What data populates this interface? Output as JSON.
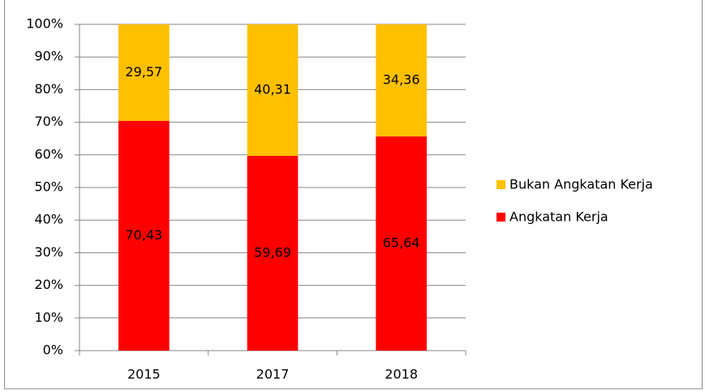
{
  "chart_data": {
    "type": "stacked_bar",
    "categories": [
      "2015",
      "2017",
      "2018"
    ],
    "series": [
      {
        "name": "Angkatan Kerja",
        "color": "#ff0000",
        "values": [
          70.43,
          59.69,
          65.64
        ],
        "value_labels": [
          "70,43",
          "59,69",
          "65,64"
        ]
      },
      {
        "name": "Bukan Angkatan Kerja",
        "color": "#ffc000",
        "values": [
          29.57,
          40.31,
          34.36
        ],
        "value_labels": [
          "29,57",
          "40,31",
          "34,36"
        ]
      }
    ],
    "ylim": [
      0,
      100
    ],
    "yticks": [
      {
        "value": 0,
        "label": "0%"
      },
      {
        "value": 10,
        "label": "10%"
      },
      {
        "value": 20,
        "label": "20%"
      },
      {
        "value": 30,
        "label": "30%"
      },
      {
        "value": 40,
        "label": "40%"
      },
      {
        "value": 50,
        "label": "50%"
      },
      {
        "value": 60,
        "label": "60%"
      },
      {
        "value": 70,
        "label": "70%"
      },
      {
        "value": 80,
        "label": "80%"
      },
      {
        "value": 90,
        "label": "90%"
      },
      {
        "value": 100,
        "label": "100%"
      }
    ],
    "grid": true,
    "legend": "right"
  }
}
